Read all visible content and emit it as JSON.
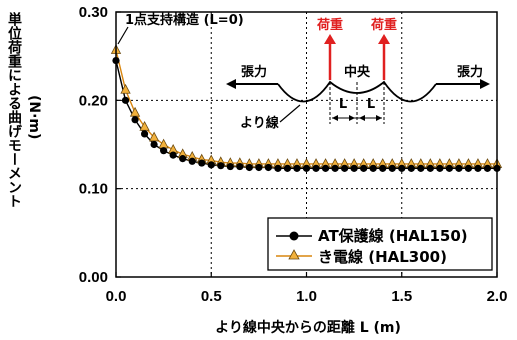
{
  "chart_data": {
    "type": "line",
    "xlabel": "より線中央からの距離 L (m)",
    "ylabel": "単位荷重による曲げモーメント",
    "ylabel_unit": "(N·m)",
    "xlim": [
      0,
      2.0
    ],
    "ylim": [
      0,
      0.3
    ],
    "xticks": [
      "0.0",
      "0.5",
      "1.0",
      "1.5",
      "2.0"
    ],
    "yticks": [
      "0.00",
      "0.10",
      "0.20",
      "0.30"
    ],
    "grid": "dotted",
    "legend_position": "bottom-right",
    "x": [
      0.0,
      0.05,
      0.1,
      0.15,
      0.2,
      0.25,
      0.3,
      0.35,
      0.4,
      0.45,
      0.5,
      0.55,
      0.6,
      0.65,
      0.7,
      0.75,
      0.8,
      0.85,
      0.9,
      0.95,
      1.0,
      1.05,
      1.1,
      1.15,
      1.2,
      1.25,
      1.3,
      1.35,
      1.4,
      1.45,
      1.5,
      1.55,
      1.6,
      1.65,
      1.7,
      1.75,
      1.8,
      1.85,
      1.9,
      1.95,
      2.0
    ],
    "series": [
      {
        "name": "AT保護線 (HAL150)",
        "color": "#000000",
        "marker": "circle",
        "values": [
          0.245,
          0.2,
          0.178,
          0.162,
          0.15,
          0.143,
          0.138,
          0.134,
          0.131,
          0.129,
          0.127,
          0.126,
          0.125,
          0.125,
          0.124,
          0.124,
          0.124,
          0.123,
          0.123,
          0.123,
          0.123,
          0.123,
          0.123,
          0.123,
          0.123,
          0.123,
          0.123,
          0.123,
          0.123,
          0.123,
          0.123,
          0.123,
          0.123,
          0.123,
          0.123,
          0.123,
          0.123,
          0.123,
          0.123,
          0.123,
          0.123
        ]
      },
      {
        "name": "き電線 (HAL300)",
        "color": "#d9860f",
        "marker": "triangle",
        "values": [
          0.257,
          0.212,
          0.186,
          0.17,
          0.158,
          0.15,
          0.144,
          0.139,
          0.136,
          0.133,
          0.132,
          0.13,
          0.129,
          0.129,
          0.128,
          0.128,
          0.128,
          0.128,
          0.128,
          0.128,
          0.128,
          0.128,
          0.128,
          0.128,
          0.128,
          0.128,
          0.128,
          0.128,
          0.128,
          0.128,
          0.128,
          0.128,
          0.128,
          0.128,
          0.128,
          0.128,
          0.128,
          0.128,
          0.128,
          0.128,
          0.128
        ]
      }
    ],
    "annotations": {
      "support": "1点支持構造 (L=0)",
      "load_left": "荷重",
      "load_right": "荷重",
      "center": "中央",
      "tension_left": "張力",
      "tension_right": "張力",
      "strand": "より線",
      "span_left": "L",
      "span_right": "L"
    }
  }
}
